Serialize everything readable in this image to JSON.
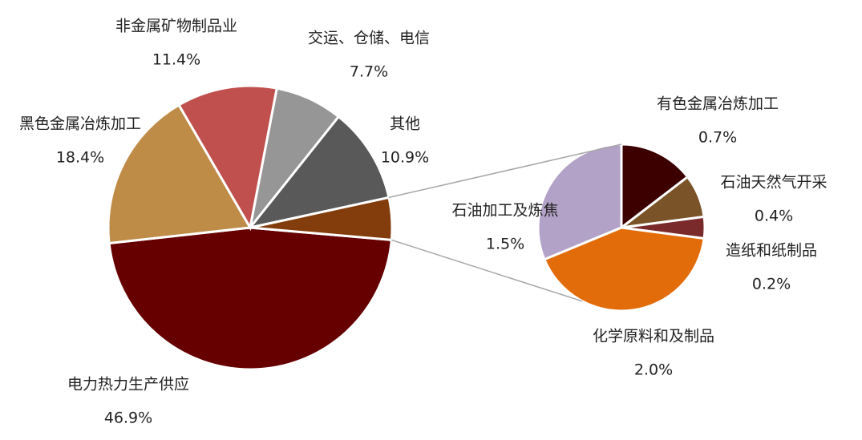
{
  "chart_data": [
    {
      "type": "pie",
      "categories": [
        "电力热力生产供应",
        "黑色金属冶炼加工",
        "非金属矿物制品业",
        "交运、仓储、电信",
        "其他",
        null
      ],
      "values": [
        46.9,
        18.4,
        11.4,
        7.7,
        10.9,
        4.8
      ],
      "value_labels": [
        "46.9%",
        "18.4%",
        "11.4%",
        "7.7%",
        "10.9%",
        null
      ],
      "colors": [
        "#660000",
        "#bf8c48",
        "#c0504d",
        "#969696",
        "#595959",
        "#833c0b"
      ]
    },
    {
      "type": "pie",
      "categories": [
        "石油加工及炼焦",
        "有色金属冶炼加工",
        "石油天然气开采",
        "造纸和纸制品",
        "化学原料和及制品"
      ],
      "values": [
        1.5,
        0.7,
        0.4,
        0.2,
        2.0
      ],
      "value_labels": [
        "1.5%",
        "0.7%",
        "0.4%",
        "0.2%",
        "2.0%"
      ],
      "colors": [
        "#b3a2c7",
        "#3d0000",
        "#7a5428",
        "#7a2a2a",
        "#e36c0a"
      ]
    }
  ]
}
